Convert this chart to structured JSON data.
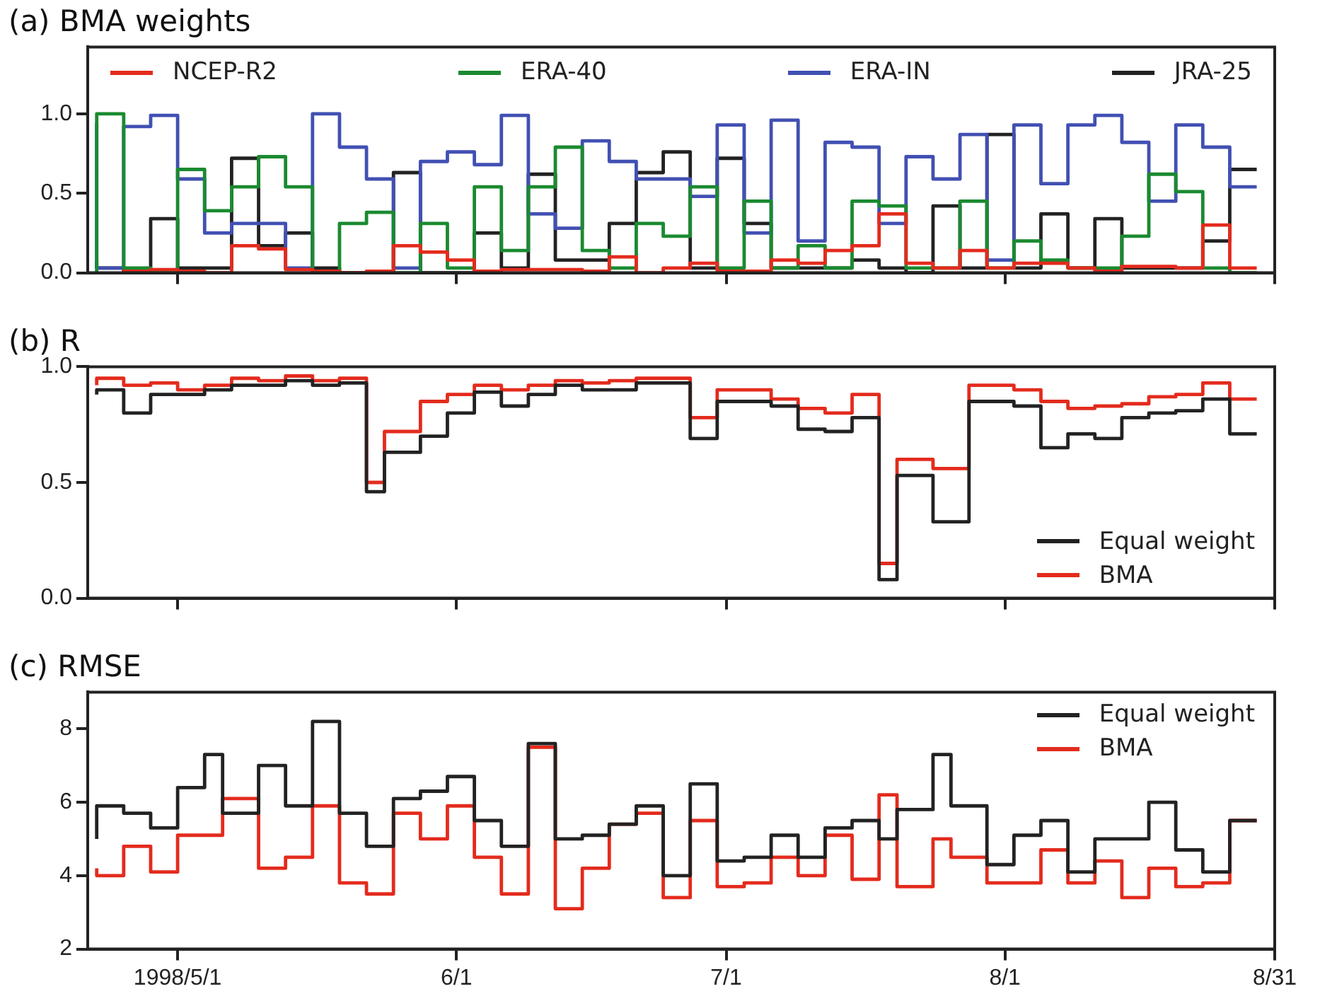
{
  "chart_data": [
    {
      "type": "step",
      "title": "(a) BMA weights",
      "legend": "top",
      "tick_labels": "y",
      "x": [
        "1998-04-22",
        "1998-04-25",
        "1998-04-28",
        "1998-05-01",
        "1998-05-04",
        "1998-05-07",
        "1998-05-10",
        "1998-05-13",
        "1998-05-16",
        "1998-05-19",
        "1998-05-22",
        "1998-05-25",
        "1998-05-28",
        "1998-05-31",
        "1998-06-03",
        "1998-06-06",
        "1998-06-09",
        "1998-06-12",
        "1998-06-15",
        "1998-06-18",
        "1998-06-21",
        "1998-06-24",
        "1998-06-27",
        "1998-06-30",
        "1998-07-03",
        "1998-07-06",
        "1998-07-09",
        "1998-07-12",
        "1998-07-15",
        "1998-07-18",
        "1998-07-21",
        "1998-07-24",
        "1998-07-27",
        "1998-07-30",
        "1998-08-02",
        "1998-08-05",
        "1998-08-08",
        "1998-08-11",
        "1998-08-14",
        "1998-08-17",
        "1998-08-20",
        "1998-08-23",
        "1998-08-26",
        "1998-08-29"
      ],
      "xlim": [
        "1998-04-21",
        "1998-08-31"
      ],
      "xticks": [
        {
          "value": "1998-05-01",
          "label": null
        },
        {
          "value": "1998-06-01",
          "label": null
        },
        {
          "value": "1998-07-01",
          "label": null
        },
        {
          "value": "1998-08-01",
          "label": null
        },
        {
          "value": "1998-08-31",
          "label": null
        }
      ],
      "ylim": [
        0,
        1.42
      ],
      "yticks": [
        {
          "value": 0,
          "label": "0.0"
        },
        {
          "value": 0.5,
          "label": "0.5"
        },
        {
          "value": 1,
          "label": "1.0"
        }
      ],
      "series": [
        {
          "name": "NCEP-R2",
          "color": "#e32b1d",
          "values": [
            null,
            0,
            0.01,
            0.02,
            0.01,
            0,
            0.17,
            0.15,
            0.02,
            0.01,
            0,
            0.01,
            0.17,
            0.13,
            0.08,
            0.01,
            0.02,
            0.02,
            0.02,
            0.01,
            0.1,
            0,
            0.03,
            0.06,
            0.01,
            0.01,
            0.08,
            0.06,
            0.14,
            0.17,
            0.37,
            0.06,
            0.03,
            0.14,
            0.03,
            0.06,
            0.06,
            0.03,
            0.01,
            0.04,
            0.04,
            0.03,
            0.3,
            0.03
          ]
        },
        {
          "name": "ERA-40",
          "color": "#1a8a30",
          "values": [
            0,
            1,
            0.03,
            0,
            0.65,
            0.39,
            0.54,
            0.73,
            0.54,
            0,
            0.31,
            0.38,
            0,
            0.31,
            0.03,
            0.54,
            0.14,
            0.54,
            0.79,
            0.14,
            0.03,
            0.31,
            0.23,
            0.54,
            0.03,
            0.45,
            0.03,
            0.17,
            0.03,
            0.45,
            0.42,
            0.03,
            0.03,
            0.45,
            0.03,
            0.2,
            0.08,
            0.03,
            0.03,
            0.23,
            0.62,
            0.51,
            0.03,
            0
          ]
        },
        {
          "name": "ERA-IN",
          "color": "#4150b2",
          "values": [
            0.94,
            0.03,
            0.92,
            0.99,
            0.59,
            0.25,
            0.31,
            0.31,
            0.03,
            1,
            0.79,
            0.59,
            0.03,
            0.7,
            0.76,
            0.68,
            0.99,
            0.37,
            0.28,
            0.83,
            0.7,
            0.59,
            0.59,
            0.48,
            0.93,
            0.25,
            0.96,
            0.2,
            0.82,
            0.79,
            0.31,
            0.73,
            0.59,
            0.87,
            0.08,
            0.93,
            0.56,
            0.93,
            0.99,
            0.82,
            0.45,
            0.93,
            0.79,
            0.54
          ]
        },
        {
          "name": "JRA-25",
          "color": "#222222",
          "values": [
            0.07,
            0.03,
            0,
            0.34,
            0.03,
            0.03,
            0.72,
            0.17,
            0.25,
            0.03,
            0,
            0,
            0.63,
            0,
            0,
            0.25,
            0.03,
            0.62,
            0.08,
            0.08,
            0.31,
            0.63,
            0.76,
            0.03,
            0.72,
            0.31,
            0.03,
            0.03,
            0.03,
            0.08,
            0.03,
            0,
            0.42,
            0.03,
            0.87,
            0.03,
            0.37,
            0.03,
            0.34,
            0.03,
            0.03,
            0.03,
            0.2,
            0.65
          ]
        }
      ]
    },
    {
      "type": "step",
      "title": "(b) R",
      "legend": "bottom right",
      "tick_labels": "y",
      "x": [
        "1998-04-22",
        "1998-04-25",
        "1998-04-28",
        "1998-05-01",
        "1998-05-04",
        "1998-05-07",
        "1998-05-10",
        "1998-05-13",
        "1998-05-16",
        "1998-05-19",
        "1998-05-22",
        "1998-05-24",
        "1998-05-28",
        "1998-05-31",
        "1998-06-03",
        "1998-06-06",
        "1998-06-09",
        "1998-06-12",
        "1998-06-15",
        "1998-06-18",
        "1998-06-21",
        "1998-06-24",
        "1998-06-27",
        "1998-06-30",
        "1998-07-03",
        "1998-07-06",
        "1998-07-09",
        "1998-07-12",
        "1998-07-15",
        "1998-07-18",
        "1998-07-20",
        "1998-07-24",
        "1998-07-28",
        "1998-07-30",
        "1998-08-02",
        "1998-08-05",
        "1998-08-08",
        "1998-08-11",
        "1998-08-14",
        "1998-08-17",
        "1998-08-20",
        "1998-08-23",
        "1998-08-26",
        "1998-08-29"
      ],
      "xlim": [
        "1998-04-21",
        "1998-08-31"
      ],
      "xticks": [
        {
          "value": "1998-05-01",
          "label": null
        },
        {
          "value": "1998-06-01",
          "label": null
        },
        {
          "value": "1998-07-01",
          "label": null
        },
        {
          "value": "1998-08-01",
          "label": null
        },
        {
          "value": "1998-08-31",
          "label": null
        }
      ],
      "ylim": [
        0,
        1
      ],
      "yticks": [
        {
          "value": 0,
          "label": "0.0"
        },
        {
          "value": 0.5,
          "label": "0.5"
        },
        {
          "value": 1,
          "label": "1.0"
        }
      ],
      "series": [
        {
          "name": "Equal weight",
          "color": "#222222",
          "values": [
            0.88,
            0.9,
            0.8,
            0.88,
            0.88,
            0.9,
            0.92,
            0.92,
            0.94,
            0.92,
            0.93,
            0.46,
            0.63,
            0.7,
            0.8,
            0.89,
            0.83,
            0.88,
            0.92,
            0.9,
            0.9,
            0.93,
            0.93,
            0.69,
            0.85,
            0.85,
            0.83,
            0.73,
            0.72,
            0.78,
            0.08,
            0.53,
            0.33,
            0.85,
            0.85,
            0.83,
            0.65,
            0.71,
            0.69,
            0.78,
            0.8,
            0.81,
            0.86,
            0.71
          ]
        },
        {
          "name": "BMA",
          "color": "#e32b1d",
          "values": [
            0.92,
            0.95,
            0.92,
            0.93,
            0.9,
            0.92,
            0.95,
            0.94,
            0.96,
            0.94,
            0.95,
            0.5,
            0.72,
            0.85,
            0.88,
            0.92,
            0.9,
            0.92,
            0.94,
            0.93,
            0.94,
            0.95,
            0.95,
            0.78,
            0.9,
            0.9,
            0.86,
            0.82,
            0.8,
            0.88,
            0.15,
            0.6,
            0.56,
            0.92,
            0.92,
            0.9,
            0.85,
            0.82,
            0.83,
            0.84,
            0.87,
            0.88,
            0.93,
            0.86
          ]
        }
      ]
    },
    {
      "type": "step",
      "title": "(c) RMSE",
      "legend": "top right",
      "x": [
        "1998-04-22",
        "1998-04-25",
        "1998-04-28",
        "1998-05-01",
        "1998-05-04",
        "1998-05-06",
        "1998-05-10",
        "1998-05-13",
        "1998-05-16",
        "1998-05-19",
        "1998-05-22",
        "1998-05-25",
        "1998-05-28",
        "1998-05-31",
        "1998-06-03",
        "1998-06-06",
        "1998-06-09",
        "1998-06-12",
        "1998-06-15",
        "1998-06-18",
        "1998-06-21",
        "1998-06-24",
        "1998-06-27",
        "1998-06-30",
        "1998-07-03",
        "1998-07-06",
        "1998-07-09",
        "1998-07-12",
        "1998-07-15",
        "1998-07-18",
        "1998-07-20",
        "1998-07-24",
        "1998-07-26",
        "1998-07-30",
        "1998-08-02",
        "1998-08-05",
        "1998-08-08",
        "1998-08-11",
        "1998-08-14",
        "1998-08-17",
        "1998-08-20",
        "1998-08-23",
        "1998-08-26",
        "1998-08-29"
      ],
      "xlim": [
        "1998-04-21",
        "1998-08-31"
      ],
      "xticks": [
        {
          "value": "1998-05-01",
          "label": "1998/5/1"
        },
        {
          "value": "1998-06-01",
          "label": "6/1"
        },
        {
          "value": "1998-07-01",
          "label": "7/1"
        },
        {
          "value": "1998-08-01",
          "label": "8/1"
        },
        {
          "value": "1998-08-31",
          "label": "8/31"
        }
      ],
      "ylim": [
        2,
        9
      ],
      "yticks": [
        2,
        4,
        6,
        8
      ],
      "series": [
        {
          "name": "Equal weight",
          "color": "#222222",
          "values": [
            5.0,
            5.9,
            5.7,
            5.3,
            6.4,
            7.3,
            5.7,
            7.0,
            5.9,
            8.2,
            5.7,
            4.8,
            6.1,
            6.3,
            6.7,
            5.5,
            4.8,
            7.6,
            5.0,
            5.1,
            5.4,
            5.9,
            4.0,
            6.5,
            4.4,
            4.5,
            5.1,
            4.5,
            5.3,
            5.5,
            5.0,
            5.8,
            7.3,
            5.9,
            4.3,
            5.1,
            5.5,
            4.1,
            5.0,
            5.0,
            6.0,
            4.7,
            4.1,
            5.5
          ]
        },
        {
          "name": "BMA",
          "color": "#e32b1d",
          "values": [
            4.2,
            4.0,
            4.8,
            4.1,
            5.1,
            5.1,
            6.1,
            4.2,
            4.5,
            5.9,
            3.8,
            3.5,
            5.7,
            5.0,
            5.9,
            4.5,
            3.5,
            7.5,
            3.1,
            4.2,
            5.4,
            5.7,
            3.4,
            5.5,
            3.7,
            3.8,
            4.5,
            4.0,
            5.1,
            3.9,
            6.2,
            3.7,
            5.0,
            4.5,
            3.8,
            3.8,
            4.7,
            3.8,
            4.4,
            3.4,
            4.2,
            3.7,
            3.8,
            5.5
          ]
        }
      ]
    }
  ]
}
